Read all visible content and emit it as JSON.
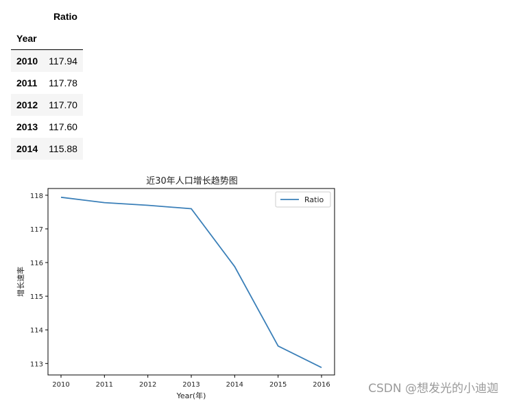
{
  "table": {
    "column_header": "Ratio",
    "index_name": "Year",
    "rows": [
      {
        "year": "2010",
        "ratio": "117.94"
      },
      {
        "year": "2011",
        "ratio": "117.78"
      },
      {
        "year": "2012",
        "ratio": "117.70"
      },
      {
        "year": "2013",
        "ratio": "117.60"
      },
      {
        "year": "2014",
        "ratio": "115.88"
      }
    ]
  },
  "chart_data": {
    "type": "line",
    "title": "近30年人口增长趋势图",
    "xlabel": "Year(年)",
    "ylabel": "增长速率",
    "x": [
      2010,
      2011,
      2012,
      2013,
      2014,
      2015,
      2016
    ],
    "series": [
      {
        "name": "Ratio",
        "values": [
          117.94,
          117.78,
          117.7,
          117.6,
          115.88,
          113.52,
          112.88
        ],
        "color": "#3a7fb8"
      }
    ],
    "xticks": [
      "2010",
      "2011",
      "2012",
      "2013",
      "2014",
      "2015",
      "2016"
    ],
    "yticks": [
      "113",
      "114",
      "115",
      "116",
      "117",
      "118"
    ],
    "xlim": [
      2009.7,
      2016.3
    ],
    "ylim": [
      112.66,
      118.2
    ],
    "grid": false,
    "legend_position": "upper-right"
  },
  "watermark": "CSDN @想发光的小迪迦"
}
